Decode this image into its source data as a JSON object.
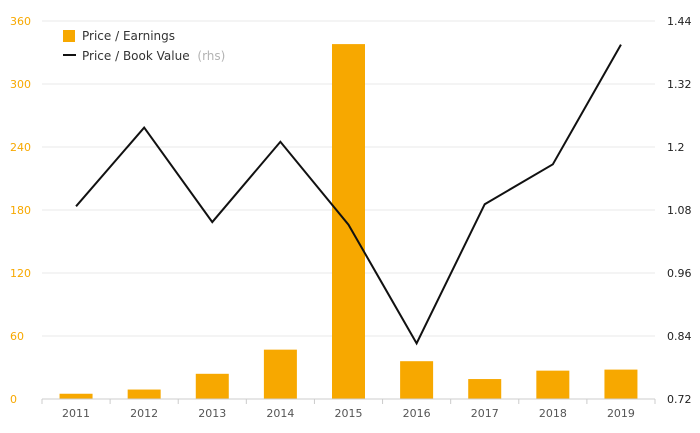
{
  "chart_data": {
    "type": "bar+line",
    "categories": [
      "2011",
      "2012",
      "2013",
      "2014",
      "2015",
      "2016",
      "2017",
      "2018",
      "2019"
    ],
    "series": [
      {
        "name": "Price / Earnings",
        "type": "bar",
        "axis": "left",
        "values": [
          5,
          9,
          24,
          47,
          338,
          36,
          19,
          27,
          28
        ]
      },
      {
        "name": "Price / Book Value",
        "name_suffix": "(rhs)",
        "type": "line",
        "axis": "right",
        "values": [
          1.087,
          1.237,
          1.057,
          1.21,
          1.052,
          0.826,
          1.091,
          1.167,
          1.395
        ]
      }
    ],
    "y_left": {
      "min": 0,
      "max": 360,
      "ticks": [
        "0",
        "60",
        "120",
        "180",
        "240",
        "300",
        "360"
      ]
    },
    "y_right": {
      "min": 0.72,
      "max": 1.44,
      "ticks": [
        "0.72",
        "0.84",
        "0.96",
        "1.08",
        "1.2",
        "1.32",
        "1.44"
      ]
    },
    "grid": true,
    "legend_position": "top-left",
    "colors": {
      "bar": "#f7a800",
      "line": "#111111",
      "left_axis_text": "#f7a800",
      "right_axis_text": "#222222",
      "grid": "#e8e8e8",
      "x_text": "#555555"
    }
  }
}
